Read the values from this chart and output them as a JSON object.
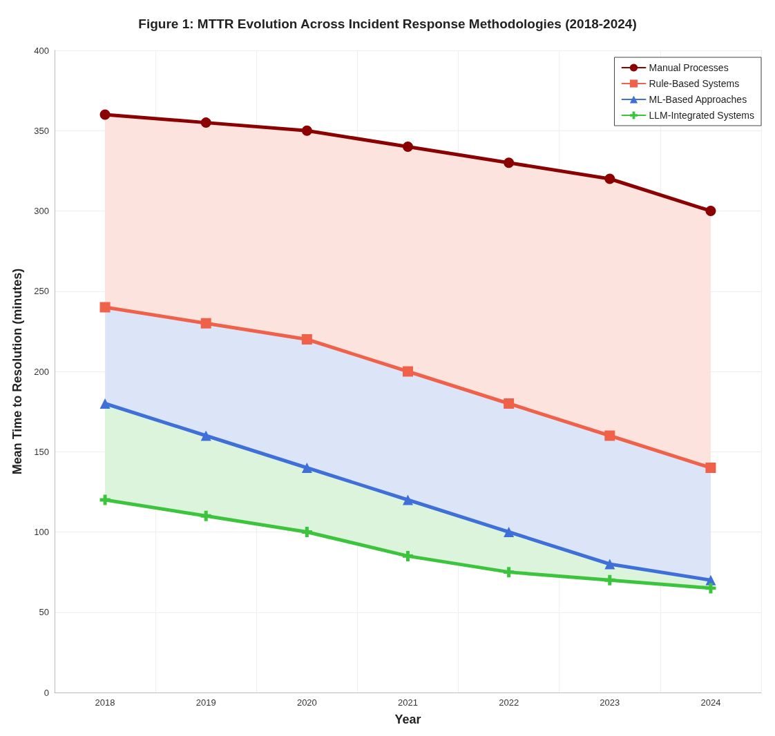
{
  "chart_data": {
    "type": "line",
    "title": "Figure 1: MTTR Evolution Across Incident Response Methodologies (2018-2024)",
    "xlabel": "Year",
    "ylabel": "Mean Time to Resolution (minutes)",
    "categories": [
      "2018",
      "2019",
      "2020",
      "2021",
      "2022",
      "2023",
      "2024"
    ],
    "ylim": [
      0,
      400
    ],
    "yticks": [
      0,
      50,
      100,
      150,
      200,
      250,
      300,
      350,
      400
    ],
    "grid": true,
    "legend": "top right",
    "line_style": "solid",
    "series": [
      {
        "name": "Manual Processes",
        "color": "#8b0000",
        "marker": "circle",
        "values": [
          360,
          355,
          350,
          340,
          330,
          320,
          300
        ]
      },
      {
        "name": "Rule-Based Systems",
        "color": "#f0614a",
        "marker": "square",
        "values": [
          240,
          230,
          220,
          200,
          180,
          160,
          140
        ],
        "upper": [
          360,
          355,
          350,
          340,
          330,
          320,
          300
        ],
        "lower": [
          240,
          230,
          220,
          200,
          180,
          160,
          140
        ]
      },
      {
        "name": "ML-Based Approaches",
        "color": "#3f6fd8",
        "marker": "triangle",
        "values": [
          180,
          160,
          140,
          120,
          100,
          80,
          70
        ],
        "upper": [
          240,
          230,
          220,
          200,
          180,
          160,
          140
        ],
        "lower": [
          180,
          160,
          140,
          120,
          100,
          80,
          70
        ]
      },
      {
        "name": "LLM-Integrated Systems",
        "color": "#3cc43c",
        "marker": "cross",
        "values": [
          120,
          110,
          100,
          85,
          75,
          70,
          65
        ],
        "upper": [
          180,
          160,
          140,
          120,
          100,
          80,
          70
        ],
        "lower": [
          120,
          110,
          100,
          85,
          75,
          70,
          65
        ]
      }
    ]
  }
}
